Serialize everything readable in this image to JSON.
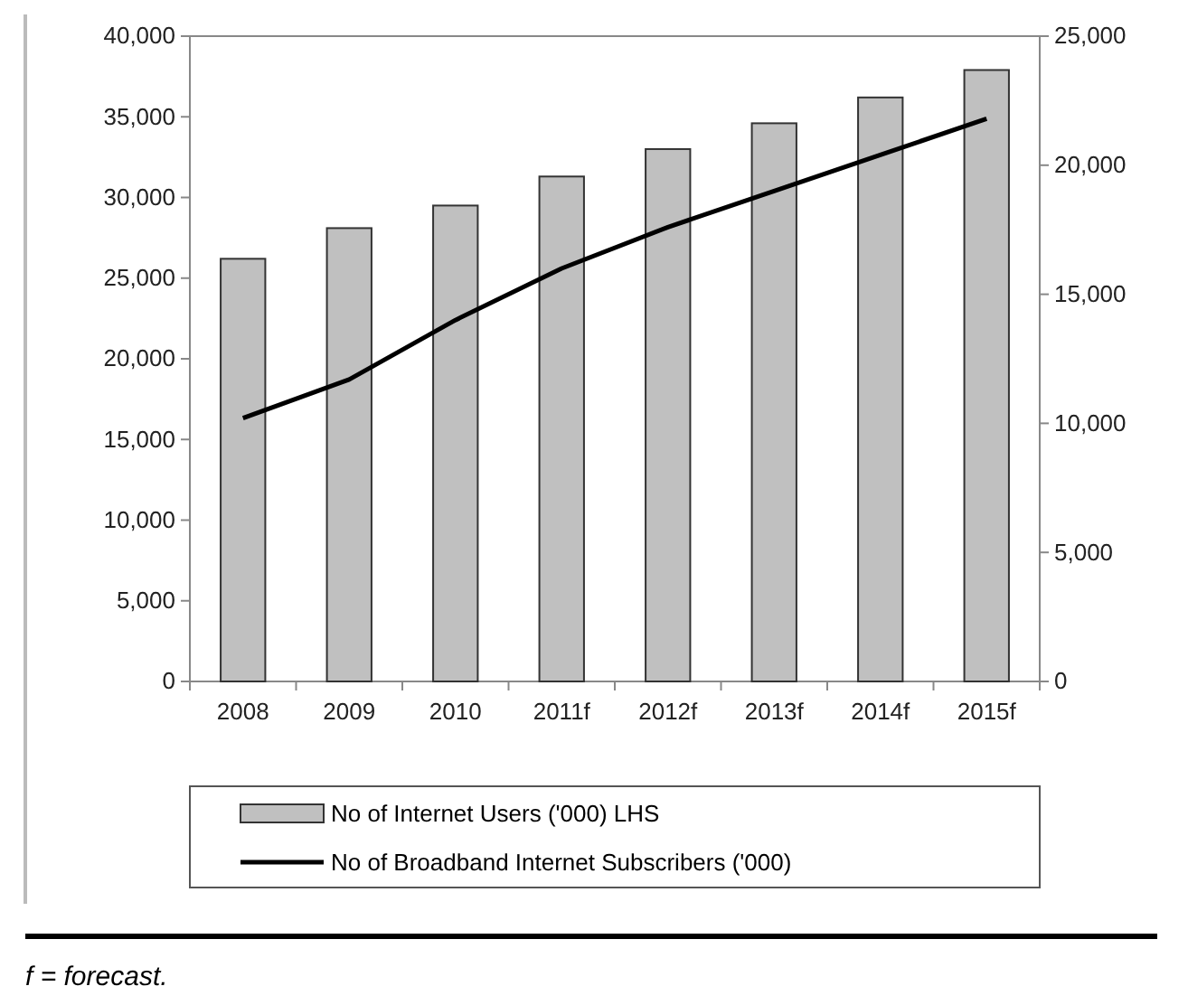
{
  "chart_data": {
    "type": "bar",
    "categories": [
      "2008",
      "2009",
      "2010",
      "2011f",
      "2012f",
      "2013f",
      "2014f",
      "2015f"
    ],
    "series": [
      {
        "name": "No of Internet Users ('000) LHS",
        "color": "#c0c0c0",
        "values": [
          26200,
          28100,
          29500,
          31300,
          33000,
          34600,
          36200,
          37900
        ]
      },
      {
        "name": "No of Broadband Internet Subscribers ('000)",
        "type": "line",
        "axis": "y2",
        "color": "#000000",
        "values": [
          10200,
          11700,
          14000,
          16000,
          17600,
          19000,
          20400,
          21800
        ]
      }
    ],
    "ylim": [
      0,
      40000
    ],
    "yticks": [
      {
        "value": 0,
        "label": "0"
      },
      {
        "value": 5000,
        "label": "5,000"
      },
      {
        "value": 10000,
        "label": "10,000"
      },
      {
        "value": 15000,
        "label": "15,000"
      },
      {
        "value": 20000,
        "label": "20,000"
      },
      {
        "value": 25000,
        "label": "25,000"
      },
      {
        "value": 30000,
        "label": "30,000"
      },
      {
        "value": 35000,
        "label": "35,000"
      },
      {
        "value": 40000,
        "label": "40,000"
      }
    ],
    "y2lim": [
      0,
      25000
    ],
    "y2ticks": [
      {
        "value": 0,
        "label": "0"
      },
      {
        "value": 5000,
        "label": "5,000"
      },
      {
        "value": 10000,
        "label": "10,000"
      },
      {
        "value": 15000,
        "label": "15,000"
      },
      {
        "value": 20000,
        "label": "20,000"
      },
      {
        "value": 25000,
        "label": "25,000"
      }
    ],
    "legend": "bottom",
    "grid": false,
    "marker": "none",
    "line_style": "solid",
    "annotations": [
      "f = forecast."
    ]
  }
}
